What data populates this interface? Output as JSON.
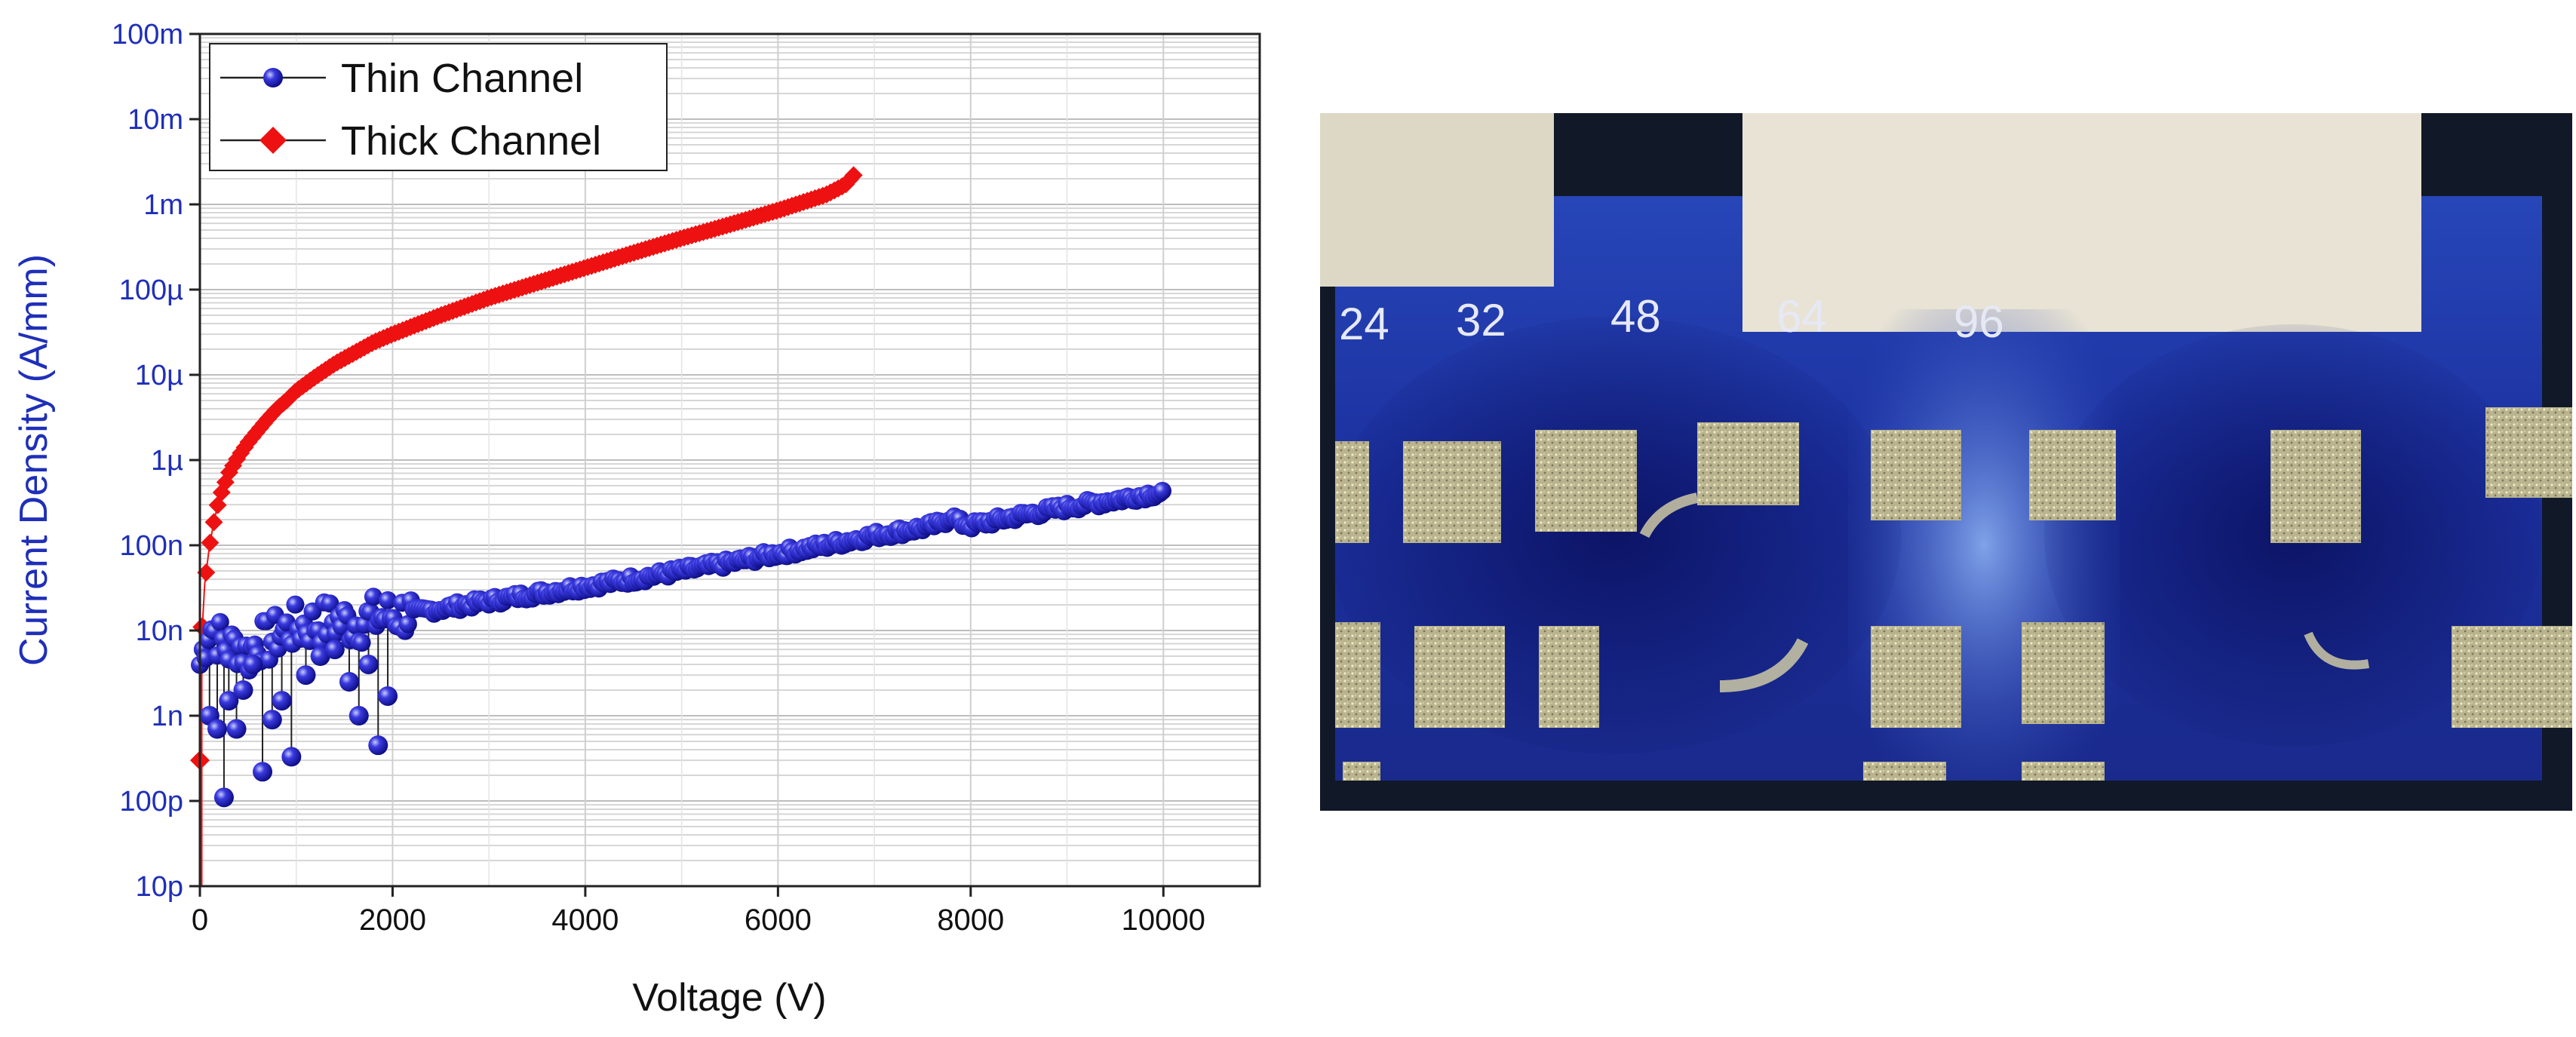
{
  "chart_data": {
    "type": "scatter",
    "xlabel": "Voltage (V)",
    "ylabel": "Current Density (A/mm)",
    "xlim": [
      0,
      11000
    ],
    "ylim": [
      1e-11,
      0.1
    ],
    "y_scale": "log",
    "x_ticks": [
      0,
      2000,
      4000,
      6000,
      8000,
      10000
    ],
    "x_tick_labels": [
      "0",
      "2000",
      "4000",
      "6000",
      "8000",
      "10000"
    ],
    "y_ticks": [
      1e-11,
      1e-10,
      1e-09,
      1e-08,
      1e-07,
      1e-06,
      1e-05,
      0.0001,
      0.001,
      0.01,
      0.1
    ],
    "y_tick_labels": [
      "10p",
      "100p",
      "1n",
      "10n",
      "100n",
      "1µ",
      "10µ",
      "100µ",
      "1m",
      "10m",
      "100m"
    ],
    "grid": true,
    "legend_position": "top-left",
    "series": [
      {
        "name": "Thin Channel",
        "color": "#1a1ac8",
        "marker": "sphere",
        "x": [
          0,
          100,
          200,
          300,
          400,
          500,
          600,
          700,
          800,
          900,
          1000,
          1200,
          1400,
          1600,
          1800,
          2000,
          2500,
          3000,
          3500,
          4000,
          4500,
          5000,
          5500,
          6000,
          6500,
          7000,
          7500,
          7700,
          7800,
          7900,
          8000,
          8500,
          9000,
          9500,
          10000
        ],
        "y": [
          4e-09,
          1.2e-08,
          8e-09,
          6e-09,
          7e-09,
          5e-09,
          8e-09,
          7e-09,
          9e-09,
          1e-08,
          1.1e-08,
          1.2e-08,
          1.3e-08,
          1.2e-08,
          1.4e-08,
          1.5e-08,
          1.8e-08,
          2.2e-08,
          2.7e-08,
          3.3e-08,
          4e-08,
          5e-08,
          6.2e-08,
          8e-08,
          1e-07,
          1.3e-07,
          1.6e-07,
          1.8e-07,
          2.2e-07,
          1.8e-07,
          1.7e-07,
          2.2e-07,
          2.8e-07,
          3.4e-07,
          4.2e-07
        ]
      },
      {
        "name": "Thick Channel",
        "color": "#ee1111",
        "marker": "diamond",
        "x": [
          0,
          25,
          50,
          100,
          150,
          200,
          300,
          400,
          500,
          600,
          700,
          800,
          900,
          1000,
          1200,
          1400,
          1600,
          1800,
          2000,
          2500,
          3000,
          3500,
          4000,
          4500,
          5000,
          5500,
          6000,
          6500,
          6700,
          6800
        ],
        "y": [
          3e-10,
          1.1e-08,
          3.5e-08,
          1e-07,
          2e-07,
          3.5e-07,
          7e-07,
          1.1e-06,
          1.6e-06,
          2.2e-06,
          3e-06,
          4e-06,
          5e-06,
          6.5e-06,
          9.5e-06,
          1.35e-05,
          1.8e-05,
          2.4e-05,
          3e-05,
          5e-05,
          8e-05,
          0.00012,
          0.00018,
          0.00027,
          0.0004,
          0.00058,
          0.00085,
          0.0013,
          0.0017,
          0.0023
        ]
      }
    ],
    "thin_scatter_low": {
      "x": [
        100,
        180,
        250,
        300,
        380,
        450,
        550,
        650,
        750,
        850,
        950,
        1100,
        1250,
        1400,
        1550,
        1650,
        1750,
        1850,
        1950
      ],
      "y": [
        1e-09,
        7e-10,
        1.1e-10,
        1.5e-09,
        7e-10,
        2e-09,
        4e-09,
        2.2e-10,
        9e-10,
        1.5e-09,
        3.3e-10,
        3e-09,
        5e-09,
        6e-09,
        2.5e-09,
        1e-09,
        4e-09,
        4.5e-10,
        1.7e-09
      ]
    }
  },
  "photo": {
    "labels": [
      "24",
      "32",
      "48",
      "64",
      "96"
    ]
  }
}
